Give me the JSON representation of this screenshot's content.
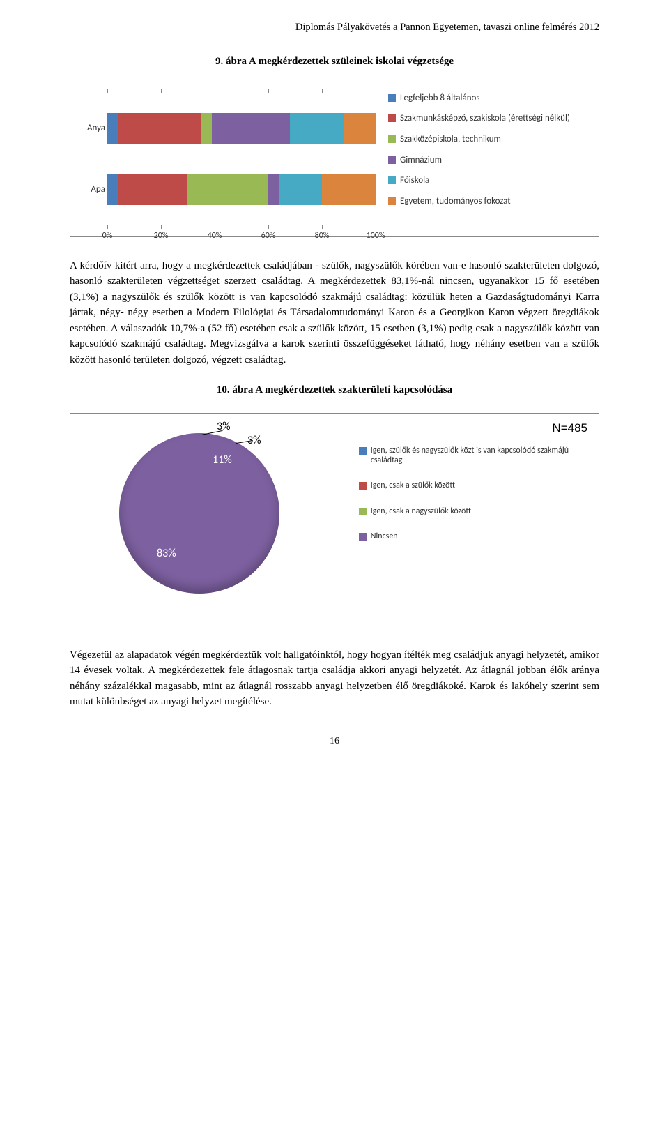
{
  "header": "Diplomás Pályakövetés a Pannon Egyetemen, tavaszi online felmérés 2012",
  "fig9_title": "9. ábra A megkérdezettek szüleinek iskolai végzetsége",
  "bar_chart": {
    "type": "stacked-bar-horizontal",
    "categories": [
      "Anya",
      "Apa"
    ],
    "series": [
      {
        "label": "Legfeljebb 8 általános",
        "color": "#4a7ebb"
      },
      {
        "label": "Szakmunkásképző, szakiskola (érettségi nélkül)",
        "color": "#be4b48"
      },
      {
        "label": "Szakközépiskola, technikum",
        "color": "#98b954"
      },
      {
        "label": "Gimnázium",
        "color": "#7d60a0"
      },
      {
        "label": "Főiskola",
        "color": "#46aac5"
      },
      {
        "label": "Egyetem, tudományos fokozat",
        "color": "#db843d"
      }
    ],
    "values": {
      "Anya": [
        0.04,
        0.31,
        0.04,
        0.29,
        0.2,
        0.12
      ],
      "Apa": [
        0.04,
        0.26,
        0.3,
        0.04,
        0.16,
        0.2
      ]
    },
    "xticks": [
      0,
      20,
      40,
      60,
      80,
      100
    ],
    "xtick_labels": [
      "0%",
      "20%",
      "40%",
      "60%",
      "80%",
      "100%"
    ],
    "plot_bg": "#ffffff",
    "axis_color": "#888888",
    "label_font": "Calibri",
    "label_fontsize": 13
  },
  "para1": "A kérdőív kitért arra, hogy a megkérdezettek családjában - szülők, nagyszülők körében van-e hasonló szakterületen dolgozó, hasonló szakterületen végzettséget szerzett családtag. A megkérdezettek 83,1%-nál nincsen, ugyanakkor 15 fő esetében (3,1%) a nagyszülők és szülők között is van kapcsolódó szakmájú családtag: közülük heten a Gazdaságtudományi Karra jártak, négy- négy esetben a Modern Filológiai és Társadalomtudományi Karon és a Georgikon Karon végzett öregdiákok esetében. A válaszadók 10,7%-a (52 fő) esetében csak a szülők között, 15 esetben (3,1%) pedig csak a nagyszülők között van kapcsolódó szakmájú családtag. Megvizsgálva a karok szerinti összefüggéseket látható, hogy néhány esetben van a szülők között hasonló területen dolgozó, végzett családtag.",
  "fig10_title": "10. ábra A megkérdezettek szakterületi kapcsolódása",
  "pie_chart": {
    "type": "pie",
    "n_label": "N=485",
    "slices": [
      {
        "label": "Igen, szülők és nagyszülők közt is van kapcsolódó szakmájú családtag",
        "value": 3,
        "pct_label": "3%",
        "color": "#4a7ebb"
      },
      {
        "label": "Igen, csak a szülők között",
        "value": 11,
        "pct_label": "11%",
        "color": "#be4b48"
      },
      {
        "label": "Igen, csak a nagyszülők között",
        "value": 3,
        "pct_label": "3%",
        "color": "#98b954"
      },
      {
        "label": "Nincsen",
        "value": 83,
        "pct_label": "83%",
        "color": "#7d60a0"
      }
    ],
    "start_angle": -90,
    "bg": "#ffffff"
  },
  "para2": "Végezetül az alapadatok végén megkérdeztük volt hallgatóinktól, hogy hogyan ítélték meg családjuk anyagi helyzetét, amikor 14 évesek voltak. A megkérdezettek fele átlagosnak tartja családja akkori anyagi helyzetét. Az átlagnál jobban élők aránya néhány százalékkal magasabb, mint az átlagnál rosszabb anyagi helyzetben élő öregdiákoké. Karok és lakóhely szerint sem mutat különbséget az anyagi helyzet megítélése.",
  "page_number": "16"
}
